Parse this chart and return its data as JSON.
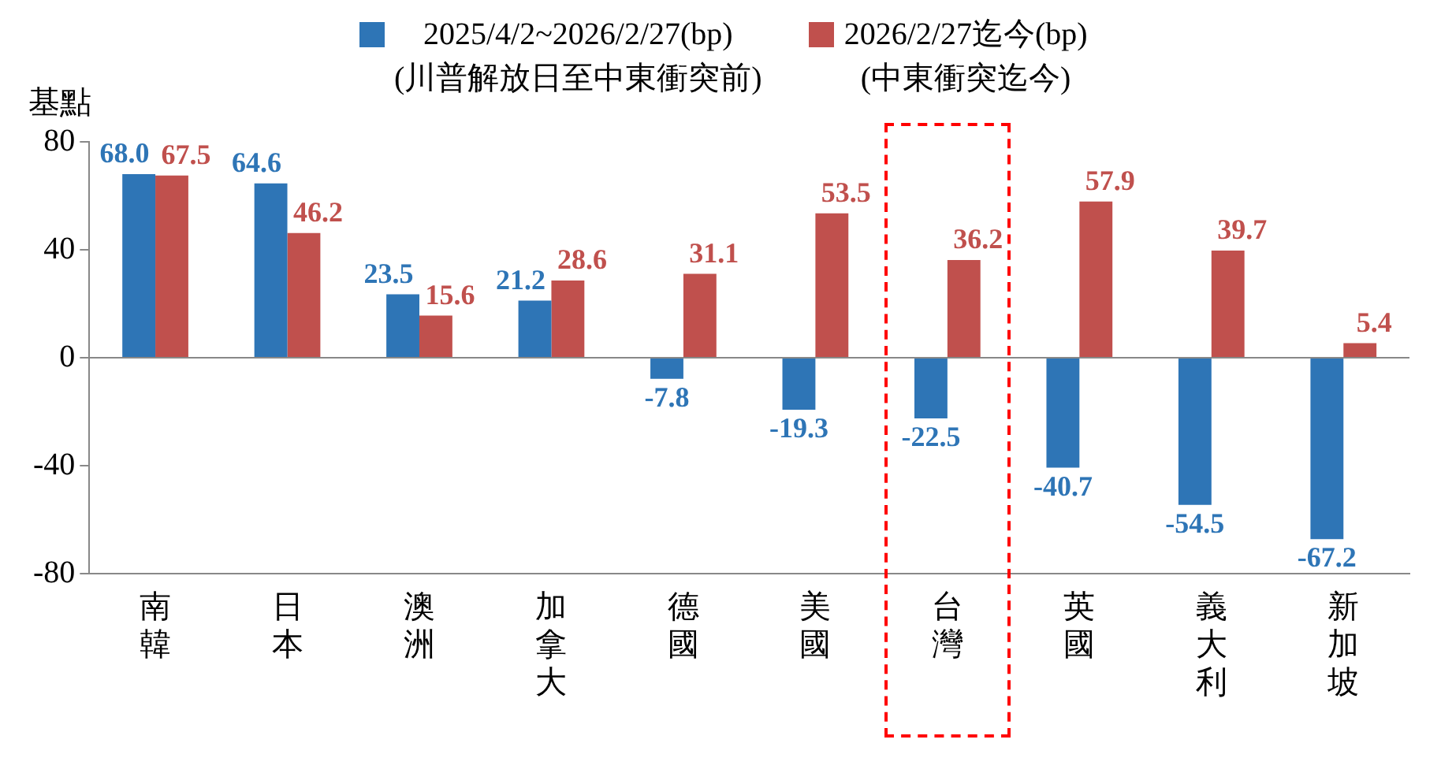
{
  "chart_data": {
    "type": "bar",
    "ylabel": "基點",
    "categories": [
      "南韓",
      "日本",
      "澳洲",
      "加拿大",
      "德國",
      "美國",
      "台灣",
      "英國",
      "義大利",
      "新加坡"
    ],
    "series": [
      {
        "name": "2025/4/2~2026/2/27(bp)\n(川普解放日至中東衝突前)",
        "color": "#2e75b6",
        "values": [
          68.0,
          64.6,
          23.5,
          21.2,
          -7.8,
          -19.3,
          -22.5,
          -40.7,
          -54.5,
          -67.2
        ],
        "value_labels": [
          "68.0",
          "64.6",
          "23.5",
          "21.2",
          "-7.8",
          "-19.3",
          "-22.5",
          "-40.7",
          "-54.5",
          "-67.2"
        ]
      },
      {
        "name": "2026/2/27迄今(bp)\n(中東衝突迄今)",
        "color": "#c0504d",
        "values": [
          67.5,
          46.2,
          15.6,
          28.6,
          31.1,
          53.5,
          36.2,
          57.9,
          39.7,
          5.4
        ],
        "value_labels": [
          "67.5",
          "46.2",
          "15.6",
          "28.6",
          "31.1",
          "53.5",
          "36.2",
          "57.9",
          "39.7",
          "5.4"
        ]
      }
    ],
    "ylim": [
      -80,
      80
    ],
    "yticks": [
      -80,
      -40,
      0,
      40,
      80
    ],
    "legend": "top"
  }
}
